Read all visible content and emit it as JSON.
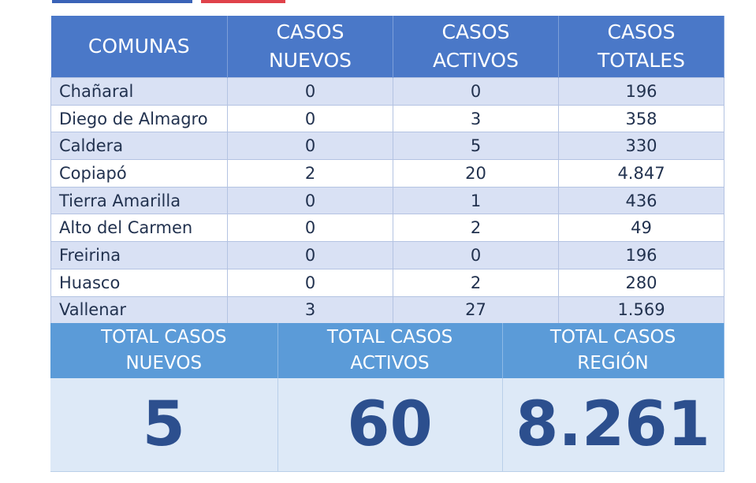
{
  "table": {
    "headers": [
      "COMUNAS",
      "CASOS NUEVOS",
      "CASOS ACTIVOS",
      "CASOS TOTALES"
    ],
    "rows": [
      [
        "Chañaral",
        "0",
        "0",
        "196"
      ],
      [
        "Diego de Almagro",
        "0",
        "3",
        "358"
      ],
      [
        "Caldera",
        "0",
        "5",
        "330"
      ],
      [
        "Copiapó",
        "2",
        "20",
        "4.847"
      ],
      [
        "Tierra Amarilla",
        "0",
        "1",
        "436"
      ],
      [
        "Alto del Carmen",
        "0",
        "2",
        "49"
      ],
      [
        "Freirina",
        "0",
        "0",
        "196"
      ],
      [
        "Huasco",
        "0",
        "2",
        "280"
      ],
      [
        "Vallenar",
        "3",
        "27",
        "1.569"
      ]
    ]
  },
  "totals": {
    "labels": [
      "TOTAL CASOS NUEVOS",
      "TOTAL CASOS ACTIVOS",
      "TOTAL CASOS REGIÓN"
    ],
    "values": [
      "5",
      "60",
      "8.261"
    ]
  }
}
